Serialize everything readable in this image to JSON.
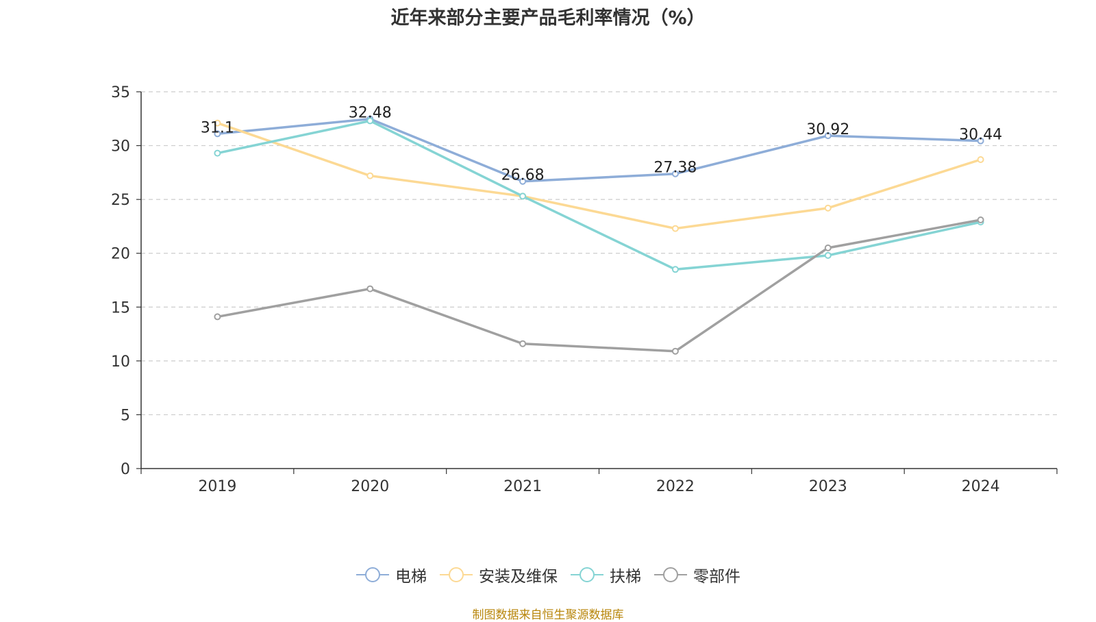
{
  "title": "近年来部分主要产品毛利率情况（%）",
  "source": "制图数据来自恒生聚源数据库",
  "chart_data": {
    "type": "line",
    "title": "近年来部分主要产品毛利率情况（%）",
    "categories": [
      "2019",
      "2020",
      "2021",
      "2022",
      "2023",
      "2024"
    ],
    "ylim": [
      0,
      35
    ],
    "yticks": [
      0,
      5,
      10,
      15,
      20,
      25,
      30,
      35
    ],
    "grid": true,
    "legend_position": "bottom",
    "series": [
      {
        "name": "电梯",
        "color": "#8eadd8",
        "values": [
          31.1,
          32.48,
          26.68,
          27.38,
          30.92,
          30.44
        ],
        "labeled": true
      },
      {
        "name": "安装及维保",
        "color": "#fcd994",
        "values": [
          32.1,
          27.2,
          25.3,
          22.3,
          24.2,
          28.7
        ],
        "labeled": false
      },
      {
        "name": "扶梯",
        "color": "#85d4d4",
        "values": [
          29.3,
          32.3,
          25.3,
          18.5,
          19.8,
          22.9
        ],
        "labeled": false
      },
      {
        "name": "零部件",
        "color": "#a0a0a0",
        "values": [
          14.1,
          16.7,
          11.6,
          10.9,
          20.5,
          23.1
        ],
        "labeled": false
      }
    ]
  }
}
